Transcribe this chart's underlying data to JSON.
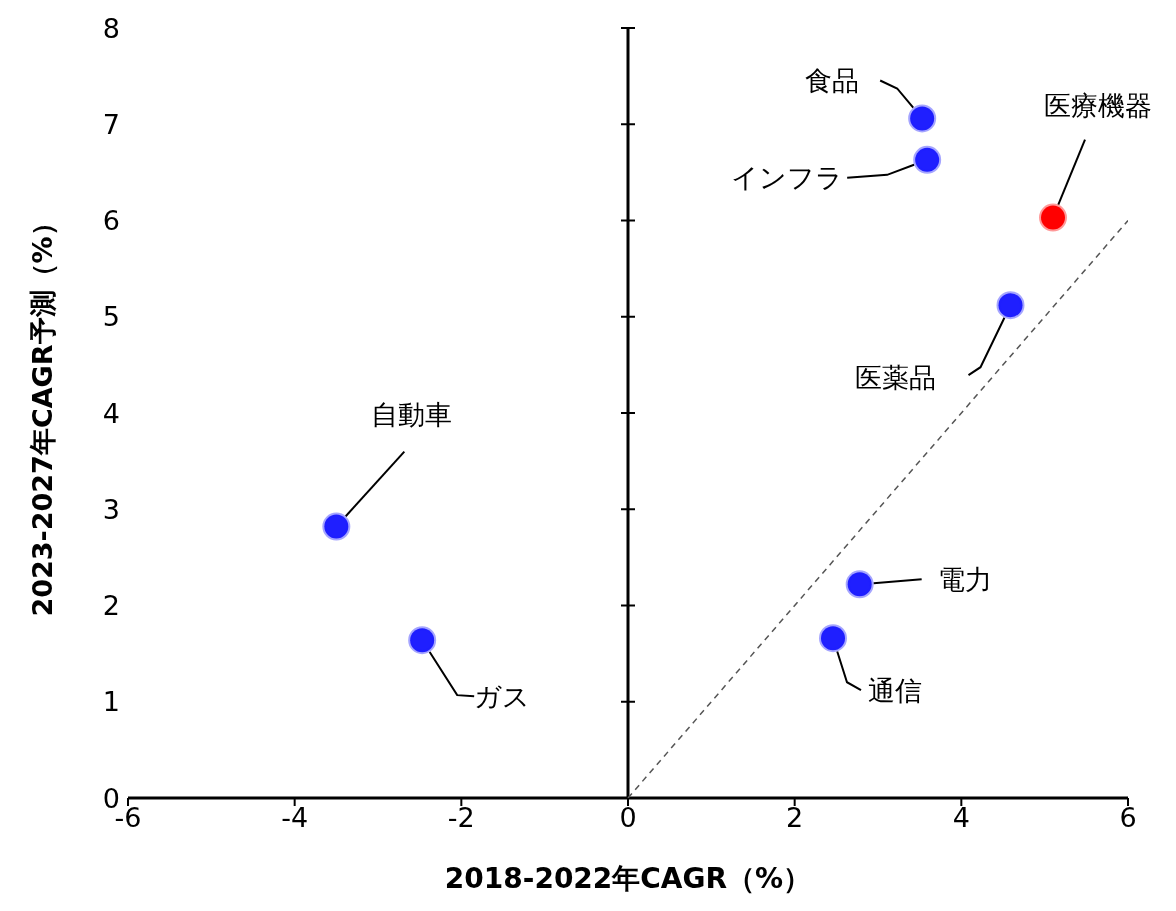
{
  "chart_data": {
    "type": "scatter",
    "xlabel": "2018-2022年CAGR（%）",
    "ylabel": "2023-2027年CAGR予測（%）",
    "xlim": [
      -6,
      6
    ],
    "xticks": [
      -6,
      -4,
      -2,
      0,
      2,
      4,
      6
    ],
    "ylim": [
      0,
      8
    ],
    "yticks": [
      0,
      1,
      2,
      3,
      4,
      5,
      6,
      7,
      8
    ],
    "marker": "circle",
    "series": [
      {
        "name": "食品",
        "color": "#1f1fff",
        "x": [
          3.53
        ],
        "values": [
          7.06
        ]
      },
      {
        "name": "インフラ",
        "color": "#1f1fff",
        "x": [
          3.59
        ],
        "values": [
          6.63
        ]
      },
      {
        "name": "医療機器",
        "color": "#ff0000",
        "x": [
          5.1
        ],
        "values": [
          6.03
        ]
      },
      {
        "name": "医薬品",
        "color": "#1f1fff",
        "x": [
          4.59
        ],
        "values": [
          5.12
        ]
      },
      {
        "name": "自動車",
        "color": "#1f1fff",
        "x": [
          -3.5
        ],
        "values": [
          2.82
        ]
      },
      {
        "name": "ガス",
        "color": "#1f1fff",
        "x": [
          -2.47
        ],
        "values": [
          1.64
        ]
      },
      {
        "name": "電力",
        "color": "#1f1fff",
        "x": [
          2.78
        ],
        "values": [
          2.22
        ]
      },
      {
        "name": "通信",
        "color": "#1f1fff",
        "x": [
          2.46
        ],
        "values": [
          1.66
        ]
      },
      {
        "type": "line",
        "color": "#555555",
        "line_style": "dashed",
        "marker": "none",
        "x": [
          0,
          6
        ],
        "values": [
          0,
          6
        ]
      }
    ]
  }
}
